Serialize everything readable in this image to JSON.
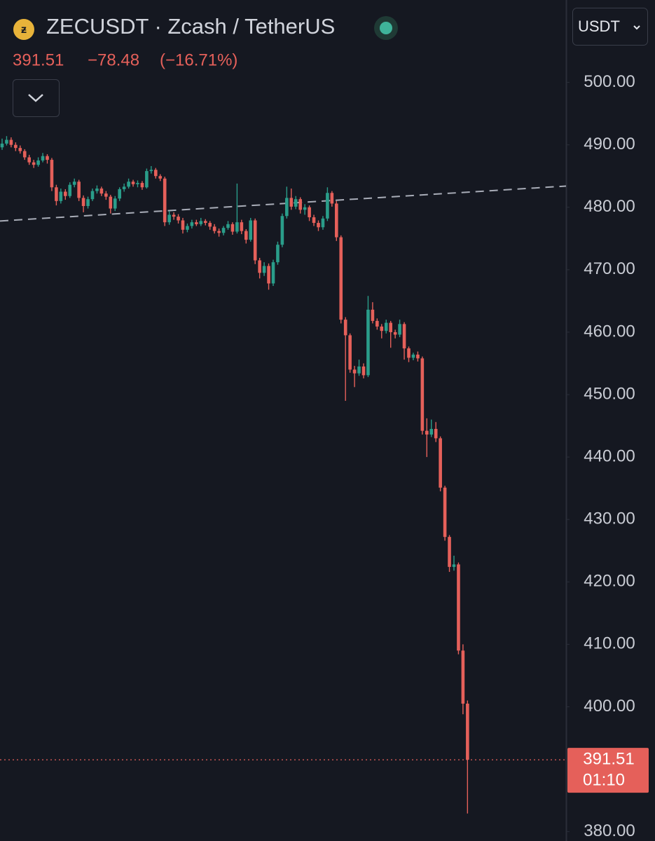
{
  "chart_data": {
    "type": "candlestick",
    "title": "ZECUSDT · Zcash / TetherUS",
    "header": {
      "price": "391.51",
      "change": "−78.48",
      "change_pct": "(−16.71%)"
    },
    "currency": "USDT",
    "countdown": "01:10",
    "up_color": "#2a9d8a",
    "down_color": "#e5605a",
    "ylim": [
      378.5,
      513.2
    ],
    "yticks": [
      {
        "value": 500,
        "label": "500.00"
      },
      {
        "value": 490,
        "label": "490.00"
      },
      {
        "value": 480,
        "label": "480.00"
      },
      {
        "value": 470,
        "label": "470.00"
      },
      {
        "value": 460,
        "label": "460.00"
      },
      {
        "value": 450,
        "label": "450.00"
      },
      {
        "value": 440,
        "label": "440.00"
      },
      {
        "value": 430,
        "label": "430.00"
      },
      {
        "value": 420,
        "label": "420.00"
      },
      {
        "value": 410,
        "label": "410.00"
      },
      {
        "value": 400,
        "label": "400.00"
      },
      {
        "value": 380,
        "label": "380.00"
      }
    ],
    "trend_line": [
      477.8,
      483.4
    ],
    "candles": [
      [
        489.6,
        491.0,
        489.2,
        490.2
      ],
      [
        490.2,
        491.4,
        489.9,
        490.8
      ],
      [
        490.8,
        491.2,
        489.6,
        490.0
      ],
      [
        490.0,
        490.4,
        489.0,
        489.5
      ],
      [
        489.5,
        489.9,
        488.6,
        489.0
      ],
      [
        489.0,
        489.3,
        487.6,
        488.0
      ],
      [
        488.0,
        488.4,
        486.8,
        487.2
      ],
      [
        487.2,
        487.6,
        486.3,
        486.8
      ],
      [
        486.8,
        488.0,
        486.5,
        487.5
      ],
      [
        487.5,
        488.7,
        487.2,
        488.2
      ],
      [
        488.2,
        488.5,
        487.0,
        487.6
      ],
      [
        487.6,
        487.9,
        482.6,
        483.2
      ],
      [
        483.2,
        483.6,
        480.3,
        481.0
      ],
      [
        481.0,
        483.0,
        480.6,
        482.5
      ],
      [
        482.5,
        482.9,
        481.2,
        481.8
      ],
      [
        481.8,
        484.0,
        481.5,
        483.6
      ],
      [
        483.6,
        484.6,
        483.2,
        484.1
      ],
      [
        484.1,
        484.4,
        481.0,
        481.5
      ],
      [
        481.5,
        481.9,
        479.2,
        480.2
      ],
      [
        480.2,
        481.7,
        479.8,
        481.3
      ],
      [
        481.3,
        483.0,
        481.0,
        482.6
      ],
      [
        482.6,
        483.5,
        482.2,
        483.0
      ],
      [
        483.0,
        483.3,
        481.8,
        482.2
      ],
      [
        482.2,
        482.6,
        481.2,
        481.7
      ],
      [
        481.7,
        482.0,
        479.0,
        479.8
      ],
      [
        479.8,
        481.8,
        479.4,
        481.4
      ],
      [
        481.4,
        483.2,
        481.0,
        482.9
      ],
      [
        482.9,
        483.8,
        482.5,
        483.3
      ],
      [
        483.3,
        484.6,
        483.0,
        484.1
      ],
      [
        484.1,
        484.4,
        483.3,
        483.7
      ],
      [
        483.7,
        484.3,
        483.2,
        483.9
      ],
      [
        483.9,
        484.2,
        482.8,
        483.2
      ],
      [
        483.2,
        486.2,
        483.0,
        485.8
      ],
      [
        485.8,
        486.6,
        485.4,
        486.0
      ],
      [
        486.0,
        486.3,
        484.6,
        485.0
      ],
      [
        485.0,
        485.3,
        484.2,
        484.6
      ],
      [
        484.6,
        484.9,
        477.0,
        477.6
      ],
      [
        477.6,
        479.4,
        477.2,
        478.8
      ],
      [
        478.8,
        479.2,
        478.0,
        478.5
      ],
      [
        478.5,
        478.9,
        477.4,
        477.9
      ],
      [
        477.9,
        478.3,
        475.8,
        476.4
      ],
      [
        476.4,
        477.4,
        476.0,
        477.0
      ],
      [
        477.0,
        478.0,
        476.6,
        477.6
      ],
      [
        477.6,
        478.0,
        477.0,
        477.3
      ],
      [
        477.3,
        478.3,
        477.0,
        477.8
      ],
      [
        477.8,
        478.1,
        477.1,
        477.5
      ],
      [
        477.5,
        477.8,
        476.4,
        476.9
      ],
      [
        476.9,
        477.3,
        475.8,
        476.2
      ],
      [
        476.2,
        476.6,
        475.3,
        475.9
      ],
      [
        475.9,
        477.0,
        475.5,
        476.7
      ],
      [
        476.7,
        477.8,
        476.4,
        477.3
      ],
      [
        477.3,
        477.6,
        475.6,
        476.1
      ],
      [
        476.1,
        483.8,
        475.8,
        477.6
      ],
      [
        477.6,
        478.0,
        475.7,
        476.2
      ],
      [
        476.2,
        476.5,
        474.2,
        474.8
      ],
      [
        474.8,
        478.3,
        474.5,
        477.9
      ],
      [
        477.9,
        478.2,
        470.9,
        471.5
      ],
      [
        471.5,
        471.9,
        468.6,
        469.5
      ],
      [
        469.5,
        471.2,
        469.0,
        470.6
      ],
      [
        470.6,
        471.0,
        466.8,
        467.8
      ],
      [
        467.8,
        471.6,
        467.4,
        471.2
      ],
      [
        471.2,
        474.5,
        470.8,
        474.0
      ],
      [
        474.0,
        479.0,
        473.6,
        478.6
      ],
      [
        478.6,
        483.3,
        478.2,
        481.5
      ],
      [
        481.5,
        483.0,
        479.6,
        480.1
      ],
      [
        480.1,
        481.8,
        479.7,
        481.3
      ],
      [
        481.3,
        481.6,
        479.0,
        479.6
      ],
      [
        479.6,
        480.5,
        478.8,
        480.0
      ],
      [
        480.0,
        480.3,
        477.8,
        478.4
      ],
      [
        478.4,
        478.8,
        477.0,
        477.5
      ],
      [
        477.5,
        477.9,
        476.2,
        476.8
      ],
      [
        476.8,
        478.6,
        476.4,
        478.2
      ],
      [
        478.2,
        483.2,
        477.8,
        482.3
      ],
      [
        482.3,
        482.6,
        480.1,
        480.6
      ],
      [
        480.6,
        481.0,
        474.6,
        475.2
      ],
      [
        475.2,
        475.5,
        461.4,
        462.0
      ],
      [
        462.0,
        462.4,
        449.0,
        459.5
      ],
      [
        459.5,
        459.8,
        453.5,
        454.0
      ],
      [
        454.0,
        454.6,
        451.2,
        453.4
      ],
      [
        453.4,
        455.6,
        453.0,
        454.5
      ],
      [
        454.5,
        455.0,
        452.6,
        453.1
      ],
      [
        453.1,
        465.8,
        452.8,
        463.6
      ],
      [
        463.6,
        464.8,
        461.4,
        461.8
      ],
      [
        461.8,
        462.2,
        460.4,
        460.9
      ],
      [
        460.9,
        461.3,
        459.0,
        460.2
      ],
      [
        460.2,
        462.0,
        459.8,
        461.5
      ],
      [
        461.5,
        461.8,
        457.5,
        460.0
      ],
      [
        460.0,
        460.4,
        459.0,
        459.6
      ],
      [
        459.6,
        462.0,
        459.2,
        461.3
      ],
      [
        461.3,
        461.6,
        455.6,
        457.4
      ],
      [
        457.4,
        457.7,
        455.2,
        455.9
      ],
      [
        455.9,
        456.7,
        455.5,
        456.4
      ],
      [
        456.4,
        456.9,
        455.3,
        455.8
      ],
      [
        455.8,
        456.1,
        443.6,
        444.2
      ],
      [
        444.2,
        446.2,
        440.0,
        443.6
      ],
      [
        443.6,
        446.0,
        443.2,
        444.5
      ],
      [
        444.5,
        445.6,
        442.4,
        443.0
      ],
      [
        443.0,
        443.3,
        434.5,
        435.1
      ],
      [
        435.1,
        435.4,
        426.6,
        427.2
      ],
      [
        427.2,
        427.5,
        421.6,
        422.4
      ],
      [
        422.4,
        424.2,
        421.8,
        422.8
      ],
      [
        422.8,
        423.1,
        408.4,
        409.0
      ],
      [
        409.0,
        410.0,
        398.8,
        400.5
      ],
      [
        400.5,
        401.0,
        382.9,
        391.51
      ]
    ]
  }
}
